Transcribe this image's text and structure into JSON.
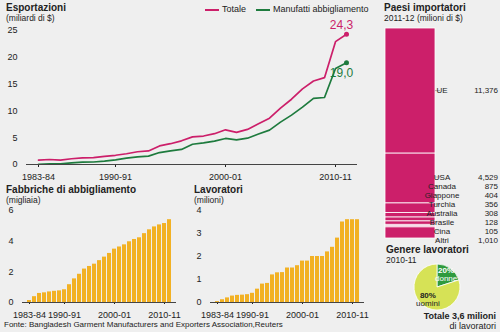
{
  "chart_data": [
    {
      "type": "line",
      "title": "Esportazioni",
      "subtitle": "(miliardi di $)",
      "categories": [
        "1983-84",
        null,
        null,
        null,
        null,
        null,
        null,
        "1990-91",
        null,
        null,
        null,
        null,
        null,
        null,
        null,
        null,
        null,
        "2000-01",
        null,
        null,
        null,
        null,
        null,
        null,
        null,
        null,
        null,
        "2010-11",
        null
      ],
      "series": [
        {
          "name": "Totale",
          "color": "#cc1f6a",
          "values": [
            0.81,
            0.93,
            0.82,
            1.07,
            1.23,
            1.29,
            1.52,
            1.72,
            2.0,
            2.38,
            2.53,
            3.47,
            3.88,
            4.42,
            5.16,
            5.31,
            5.75,
            6.47,
            5.99,
            6.55,
            7.6,
            8.65,
            10.53,
            12.18,
            14.11,
            15.57,
            16.2,
            22.92,
            24.3
          ],
          "value_labels": [
            null,
            null,
            null,
            null,
            null,
            null,
            null,
            null,
            null,
            null,
            null,
            null,
            null,
            null,
            null,
            null,
            null,
            null,
            null,
            null,
            null,
            null,
            null,
            null,
            null,
            null,
            null,
            null,
            "24,3"
          ]
        },
        {
          "name": "Manufatti abbigliamento",
          "color": "#1e7b3e",
          "values": [
            0.03,
            0.12,
            0.13,
            0.3,
            0.43,
            0.47,
            0.62,
            0.87,
            1.18,
            1.44,
            1.56,
            2.23,
            2.55,
            2.81,
            3.78,
            4.02,
            4.35,
            4.86,
            4.58,
            4.91,
            5.69,
            6.42,
            7.9,
            9.21,
            10.7,
            12.35,
            12.5,
            17.91,
            19.0
          ],
          "value_labels": [
            null,
            null,
            null,
            null,
            null,
            null,
            null,
            null,
            null,
            null,
            null,
            null,
            null,
            null,
            null,
            null,
            null,
            null,
            null,
            null,
            null,
            null,
            null,
            null,
            null,
            null,
            null,
            null,
            "19,0"
          ]
        }
      ],
      "ylim": [
        0,
        25
      ],
      "yticks": [
        0,
        5,
        10,
        15,
        20,
        25
      ],
      "legend": "top"
    },
    {
      "type": "bar",
      "stacked": true,
      "title": "Paesi importatori",
      "subtitle": "2011-12 (milioni di $)",
      "categories": [
        "UE",
        "USA",
        "Canada",
        "Giappone",
        "Turchia",
        "Australia",
        "Brasile",
        "Cina",
        "Altri"
      ],
      "values": [
        11376,
        4529,
        875,
        404,
        356,
        308,
        128,
        105,
        1010
      ],
      "value_labels": [
        "11,376",
        "4,529",
        "875",
        "404",
        "356",
        "308",
        "128",
        "105",
        "1,010"
      ],
      "data_labels": true,
      "tick_labels": false,
      "color": "#cc1f6a"
    },
    {
      "type": "bar",
      "title": "Fabbriche di abbigliamento",
      "subtitle": "(migliaia)",
      "categories": [
        "1983-84",
        null,
        null,
        null,
        null,
        null,
        null,
        "1990-91",
        null,
        null,
        null,
        null,
        null,
        null,
        null,
        null,
        null,
        "2000-01",
        null,
        null,
        null,
        null,
        null,
        null,
        null,
        null,
        null,
        "2010-11",
        null
      ],
      "values": [
        0.13,
        0.38,
        0.59,
        0.63,
        0.69,
        0.73,
        0.76,
        0.83,
        1.16,
        1.54,
        1.84,
        2.18,
        2.35,
        2.5,
        2.73,
        2.96,
        3.2,
        3.48,
        3.62,
        3.76,
        3.96,
        4.11,
        4.22,
        4.49,
        4.74,
        4.93,
        5.06,
        5.15,
        5.4
      ],
      "color": "#f2b124",
      "ylim": [
        0,
        6
      ],
      "yticks": [
        0,
        2,
        4,
        6
      ]
    },
    {
      "type": "bar",
      "title": "Lavoratori",
      "subtitle": "(milioni)",
      "categories": [
        "1983-84",
        null,
        null,
        null,
        null,
        null,
        null,
        "1990-91",
        null,
        null,
        null,
        null,
        null,
        null,
        null,
        null,
        null,
        "2000-01",
        null,
        null,
        null,
        null,
        null,
        null,
        null,
        null,
        null,
        "2010-11",
        null
      ],
      "values": [
        0.04,
        0.12,
        0.2,
        0.28,
        0.31,
        0.32,
        0.34,
        0.4,
        0.58,
        0.8,
        0.83,
        1.2,
        1.29,
        1.3,
        1.5,
        1.5,
        1.6,
        1.8,
        1.8,
        2.0,
        2.0,
        2.0,
        2.2,
        2.4,
        2.8,
        3.5,
        3.6,
        3.6,
        3.6
      ],
      "color": "#f2b124",
      "ylim": [
        0,
        4
      ],
      "yticks": [
        0,
        1,
        2,
        3,
        4
      ]
    },
    {
      "type": "pie",
      "title": "Genere lavoratori",
      "subtitle": "2010-11",
      "categories": [
        "donne",
        "uomini"
      ],
      "values": [
        20,
        80
      ],
      "value_labels": [
        "20%",
        "80%"
      ],
      "colors": [
        "#2f9a3e",
        "#d6e256"
      ],
      "data_labels": true,
      "annotations": [
        "Totale 3,6 milioni",
        "di lavoratori"
      ]
    }
  ],
  "caption": "Fonte: Bangladesh Garment Manufacturers and Exporters Association,Reuters"
}
